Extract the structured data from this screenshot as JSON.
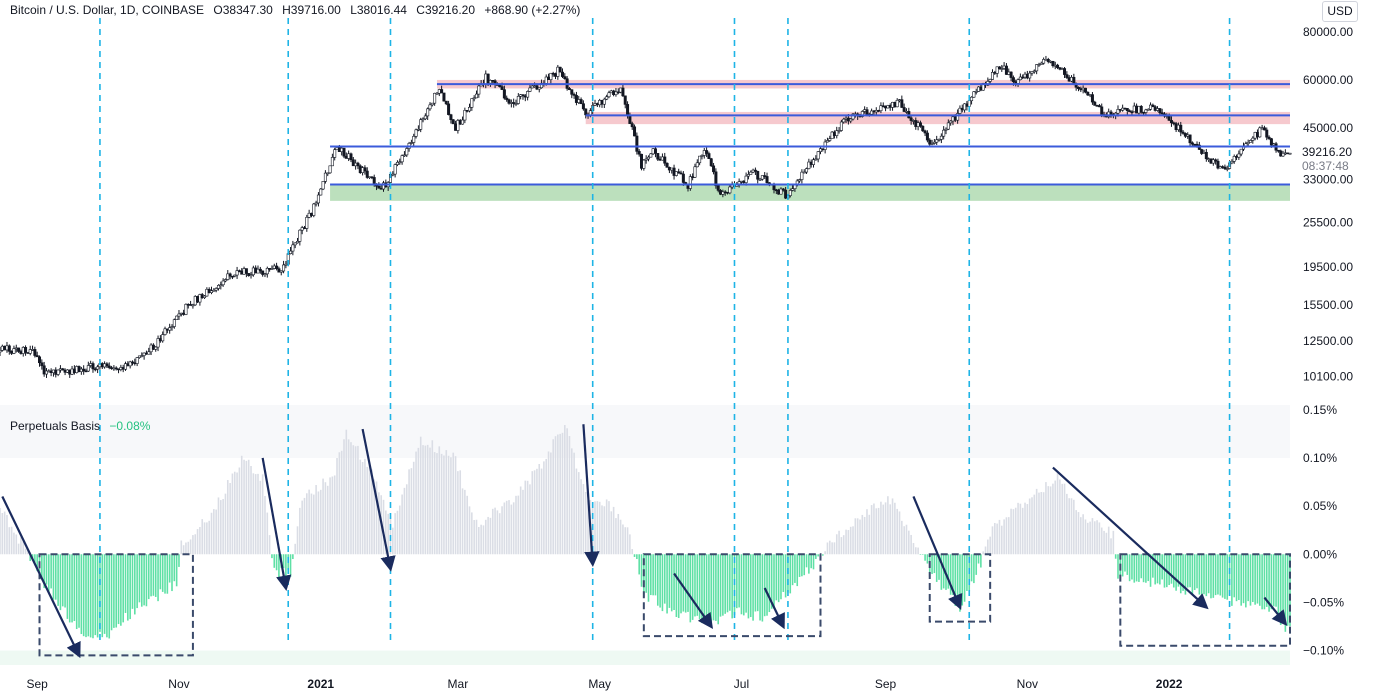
{
  "header": {
    "symbol": "Bitcoin / U.S. Dollar, 1D, COINBASE",
    "open": "O38347.30",
    "high": "H39716.00",
    "low": "L38016.44",
    "close": "C39216.20",
    "change": "+868.90 (+2.27%)"
  },
  "currency_button": "USD",
  "current_price": {
    "value": "39216.20",
    "countdown": "08:37:48"
  },
  "indicator": {
    "name": "Perpetuals Basis",
    "value": "−0.08%"
  },
  "colors": {
    "candle": "#131722",
    "level_line": "#3b5bdb",
    "red_zone": "#f3b7bd",
    "green_zone": "#a5d6a7",
    "basis_positive": "#dadde5",
    "basis_negative": "#5ee0a5",
    "cycle_line": "#1eb4e6",
    "arrow": "#1a2b5e",
    "box": "#3a4a6b"
  },
  "chart_data": [
    {
      "type": "candlestick",
      "title": "Bitcoin / U.S. Dollar, 1D, COINBASE",
      "y_scale": "log",
      "ylim": [
        8500,
        85000
      ],
      "y_ticks": [
        "80000.00",
        "60000.00",
        "45000.00",
        "33000.00",
        "25500.00",
        "19500.00",
        "15500.00",
        "12500.00",
        "10100.00"
      ],
      "x_ticks": [
        "Sep",
        "Nov",
        "2021",
        "Mar",
        "May",
        "Jul",
        "Sep",
        "Nov",
        "2022"
      ],
      "x_tick_dates": [
        "2020-09-01",
        "2020-11-01",
        "2021-01-01",
        "2021-03-01",
        "2021-05-01",
        "2021-07-01",
        "2021-09-01",
        "2021-11-01",
        "2022-01-01"
      ],
      "x_range": [
        "2020-08-16",
        "2022-02-22"
      ],
      "price_path": [
        [
          "2020-08-16",
          11900
        ],
        [
          "2020-08-31",
          11700
        ],
        [
          "2020-09-05",
          10200
        ],
        [
          "2020-09-25",
          10700
        ],
        [
          "2020-10-08",
          10600
        ],
        [
          "2020-10-20",
          11900
        ],
        [
          "2020-11-05",
          15500
        ],
        [
          "2020-11-25",
          18800
        ],
        [
          "2020-12-15",
          19300
        ],
        [
          "2020-12-28",
          27000
        ],
        [
          "2021-01-08",
          40500
        ],
        [
          "2021-01-27",
          31000
        ],
        [
          "2021-02-05",
          37500
        ],
        [
          "2021-02-21",
          57000
        ],
        [
          "2021-02-28",
          45000
        ],
        [
          "2021-03-13",
          61000
        ],
        [
          "2021-03-25",
          52000
        ],
        [
          "2021-04-13",
          63500
        ],
        [
          "2021-04-25",
          49000
        ],
        [
          "2021-05-10",
          57500
        ],
        [
          "2021-05-19",
          36000
        ],
        [
          "2021-05-24",
          39000
        ],
        [
          "2021-06-08",
          32000
        ],
        [
          "2021-06-15",
          40000
        ],
        [
          "2021-06-22",
          30000
        ],
        [
          "2021-07-06",
          34500
        ],
        [
          "2021-07-20",
          30000
        ],
        [
          "2021-08-14",
          47000
        ],
        [
          "2021-09-07",
          52500
        ],
        [
          "2021-09-21",
          40500
        ],
        [
          "2021-10-20",
          65500
        ],
        [
          "2021-10-28",
          59000
        ],
        [
          "2021-11-10",
          68500
        ],
        [
          "2021-11-28",
          54000
        ],
        [
          "2021-12-04",
          49000
        ],
        [
          "2021-12-27",
          51000
        ],
        [
          "2022-01-10",
          41500
        ],
        [
          "2022-01-24",
          35000
        ],
        [
          "2022-02-10",
          45000
        ],
        [
          "2022-02-18",
          38000
        ],
        [
          "2022-02-21",
          39216
        ]
      ],
      "levels": [
        {
          "price": 58500,
          "zone": [
            57000,
            60000
          ],
          "color": "red",
          "from": "2021-02-20"
        },
        {
          "price": 48500,
          "zone": [
            46000,
            49500
          ],
          "color": "red",
          "from": "2021-04-25"
        },
        {
          "price": 40200,
          "zone": [
            38500,
            40200
          ],
          "color": "none",
          "from": "2021-01-05"
        },
        {
          "price": 32000,
          "zone": [
            29000,
            32000
          ],
          "color": "green",
          "from": "2021-01-05"
        }
      ]
    },
    {
      "type": "bar",
      "title": "Perpetuals Basis",
      "unit": "%",
      "ylim": [
        -0.115,
        0.155
      ],
      "y_ticks": [
        "0.15%",
        "0.10%",
        "0.05%",
        "0.00%",
        "−0.05%",
        "−0.10%"
      ],
      "basis_path": [
        [
          "2020-08-16",
          0.05
        ],
        [
          "2020-08-28",
          0.0
        ],
        [
          "2020-09-01",
          -0.02
        ],
        [
          "2020-09-10",
          -0.05
        ],
        [
          "2020-09-20",
          -0.085
        ],
        [
          "2020-10-01",
          -0.085
        ],
        [
          "2020-10-12",
          -0.06
        ],
        [
          "2020-10-25",
          -0.04
        ],
        [
          "2020-10-31",
          -0.03
        ],
        [
          "2020-11-02",
          0.01
        ],
        [
          "2020-11-15",
          0.04
        ],
        [
          "2020-11-28",
          0.1
        ],
        [
          "2020-12-07",
          0.08
        ],
        [
          "2020-12-12",
          -0.02
        ],
        [
          "2020-12-19",
          -0.02
        ],
        [
          "2020-12-24",
          0.06
        ],
        [
          "2021-01-06",
          0.08
        ],
        [
          "2021-01-12",
          0.125
        ],
        [
          "2021-01-22",
          0.09
        ],
        [
          "2021-02-01",
          0.03
        ],
        [
          "2021-02-13",
          0.12
        ],
        [
          "2021-02-28",
          0.1
        ],
        [
          "2021-03-08",
          0.03
        ],
        [
          "2021-03-22",
          0.05
        ],
        [
          "2021-04-05",
          0.09
        ],
        [
          "2021-04-16",
          0.135
        ],
        [
          "2021-04-25",
          0.06
        ],
        [
          "2021-05-06",
          0.05
        ],
        [
          "2021-05-14",
          0.02
        ],
        [
          "2021-05-20",
          -0.04
        ],
        [
          "2021-06-01",
          -0.06
        ],
        [
          "2021-06-18",
          -0.07
        ],
        [
          "2021-06-28",
          -0.06
        ],
        [
          "2021-07-10",
          -0.065
        ],
        [
          "2021-07-25",
          -0.03
        ],
        [
          "2021-08-01",
          -0.01
        ],
        [
          "2021-08-08",
          0.01
        ],
        [
          "2021-08-22",
          0.04
        ],
        [
          "2021-09-02",
          0.06
        ],
        [
          "2021-09-12",
          0.02
        ],
        [
          "2021-09-20",
          -0.02
        ],
        [
          "2021-10-03",
          -0.055
        ],
        [
          "2021-10-12",
          -0.01
        ],
        [
          "2021-10-15",
          0.02
        ],
        [
          "2021-10-28",
          0.05
        ],
        [
          "2021-11-14",
          0.08
        ],
        [
          "2021-11-25",
          0.04
        ],
        [
          "2021-12-08",
          0.02
        ],
        [
          "2021-12-10",
          -0.02
        ],
        [
          "2021-12-25",
          -0.03
        ],
        [
          "2022-01-15",
          -0.04
        ],
        [
          "2022-02-01",
          -0.05
        ],
        [
          "2022-02-15",
          -0.055
        ],
        [
          "2022-02-21",
          -0.08
        ]
      ]
    }
  ],
  "annotations": {
    "cycle_lines": [
      "2020-09-28",
      "2020-12-18",
      "2021-01-31",
      "2021-04-28",
      "2021-06-28",
      "2021-07-21",
      "2021-10-07",
      "2022-01-27"
    ],
    "boxes": [
      {
        "from": "2020-09-02",
        "to": "2020-11-07",
        "bottom": -0.105,
        "top": 0.0
      },
      {
        "from": "2021-05-20",
        "to": "2021-08-04",
        "bottom": -0.085,
        "top": 0.0
      },
      {
        "from": "2021-09-20",
        "to": "2021-10-16",
        "bottom": -0.07,
        "top": 0.0
      },
      {
        "from": "2021-12-11",
        "to": "2022-02-22",
        "bottom": -0.095,
        "top": 0.0
      }
    ],
    "arrows": [
      {
        "from": [
          "2020-08-17",
          0.06
        ],
        "to": [
          "2020-09-19",
          -0.105
        ]
      },
      {
        "from": [
          "2020-12-07",
          0.1
        ],
        "to": [
          "2020-12-17",
          -0.035
        ]
      },
      {
        "from": [
          "2021-01-19",
          0.13
        ],
        "to": [
          "2021-01-31",
          -0.015
        ]
      },
      {
        "from": [
          "2021-04-24",
          0.135
        ],
        "to": [
          "2021-04-28",
          -0.01
        ]
      },
      {
        "from": [
          "2021-06-02",
          -0.02
        ],
        "to": [
          "2021-06-18",
          -0.075
        ]
      },
      {
        "from": [
          "2021-07-11",
          -0.035
        ],
        "to": [
          "2021-07-19",
          -0.075
        ]
      },
      {
        "from": [
          "2021-09-13",
          0.06
        ],
        "to": [
          "2021-10-03",
          -0.055
        ]
      },
      {
        "from": [
          "2021-11-12",
          0.09
        ],
        "to": [
          "2022-01-17",
          -0.055
        ]
      },
      {
        "from": [
          "2022-02-11",
          -0.045
        ],
        "to": [
          "2022-02-20",
          -0.072
        ]
      }
    ]
  }
}
